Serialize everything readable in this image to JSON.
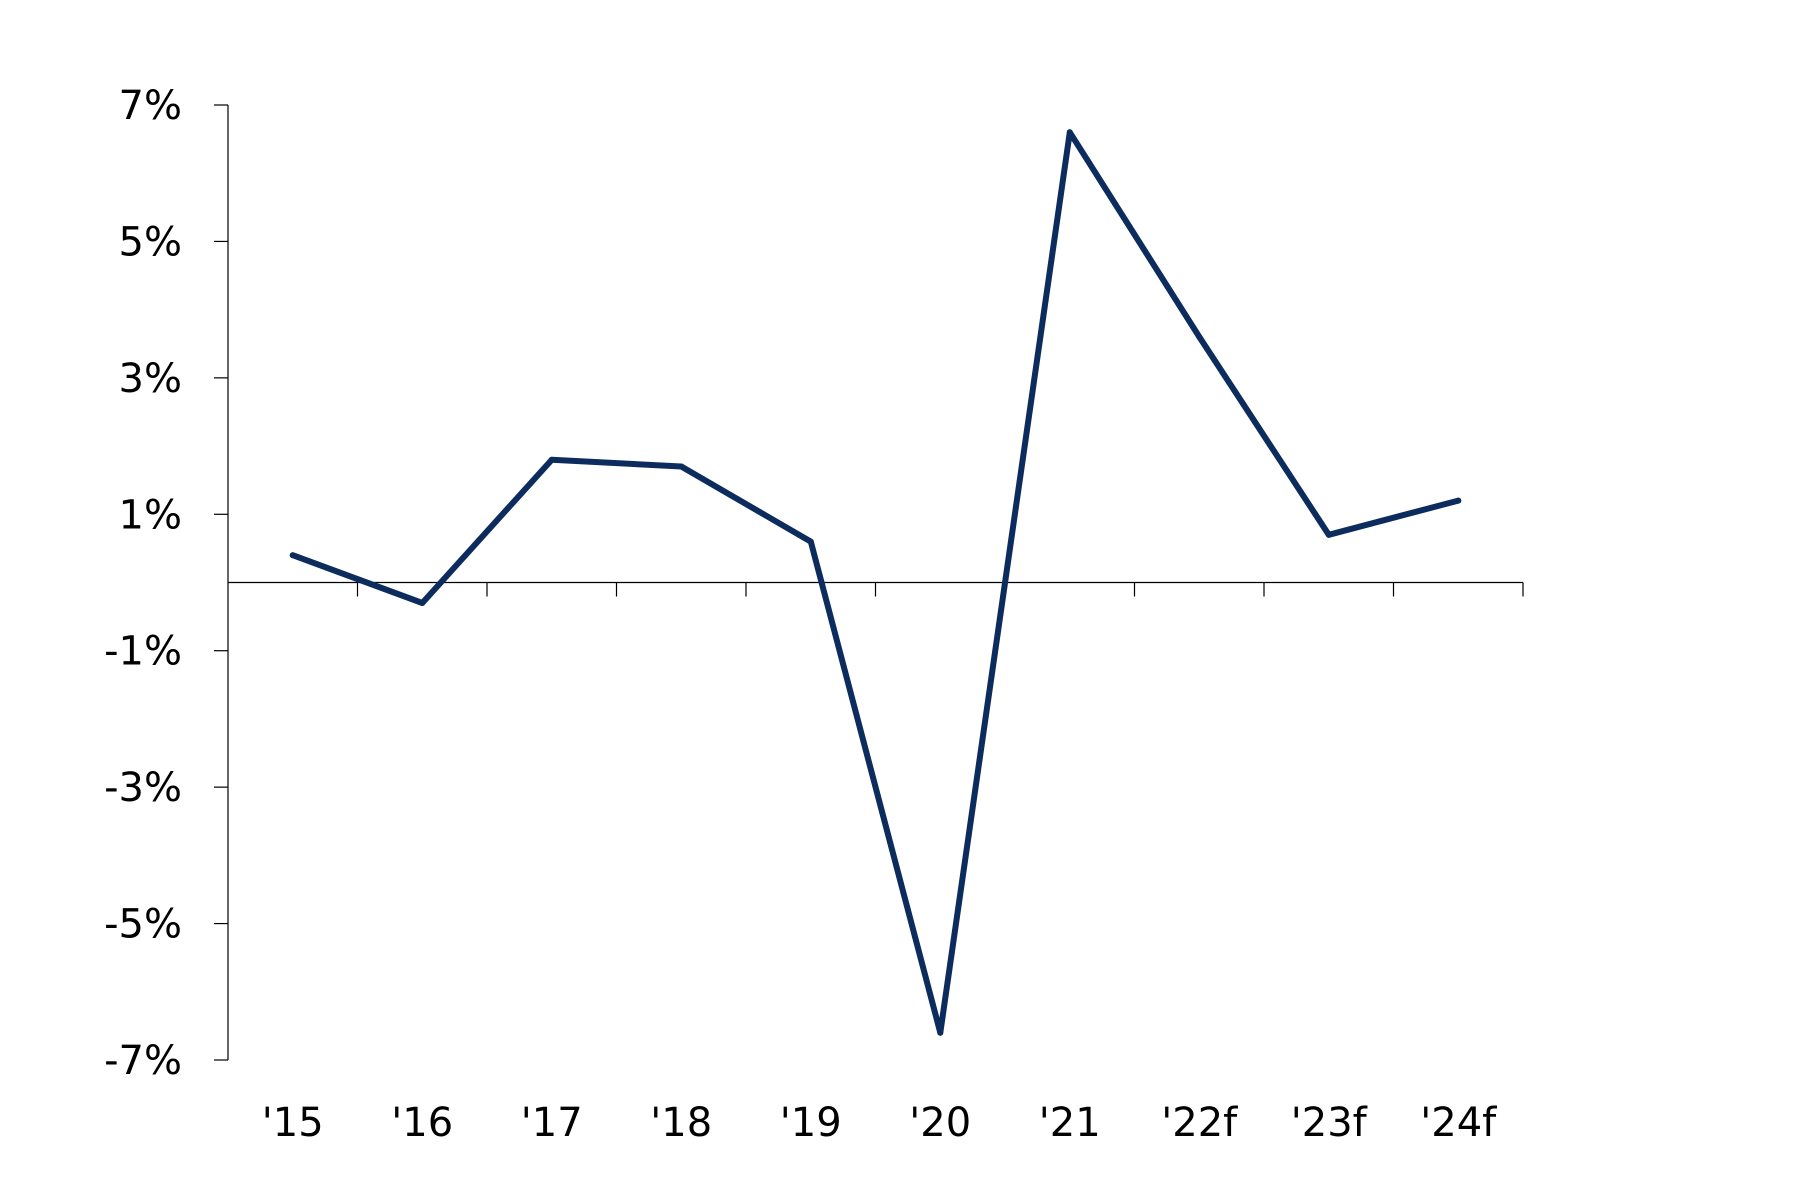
{
  "chart_data": {
    "type": "line",
    "title": "",
    "xlabel": "",
    "ylabel": "",
    "categories": [
      "'15",
      "'16",
      "'17",
      "'18",
      "'19",
      "'20",
      "'21",
      "'22f",
      "'23f",
      "'24f"
    ],
    "series": [
      {
        "values": [
          0.4,
          -0.3,
          1.8,
          1.7,
          0.6,
          -6.6,
          6.6,
          3.6,
          0.7,
          1.2
        ]
      }
    ],
    "ylim": [
      -7,
      7
    ],
    "yticks": [
      7,
      5,
      3,
      1,
      -1,
      -3,
      -5,
      -7
    ],
    "ytick_labels": [
      "7%",
      "5%",
      "3%",
      "1%",
      "-1%",
      "-3%",
      "-5%",
      "-7%"
    ],
    "grid": false,
    "legend": "none",
    "line_color": "#0d2c5e"
  }
}
